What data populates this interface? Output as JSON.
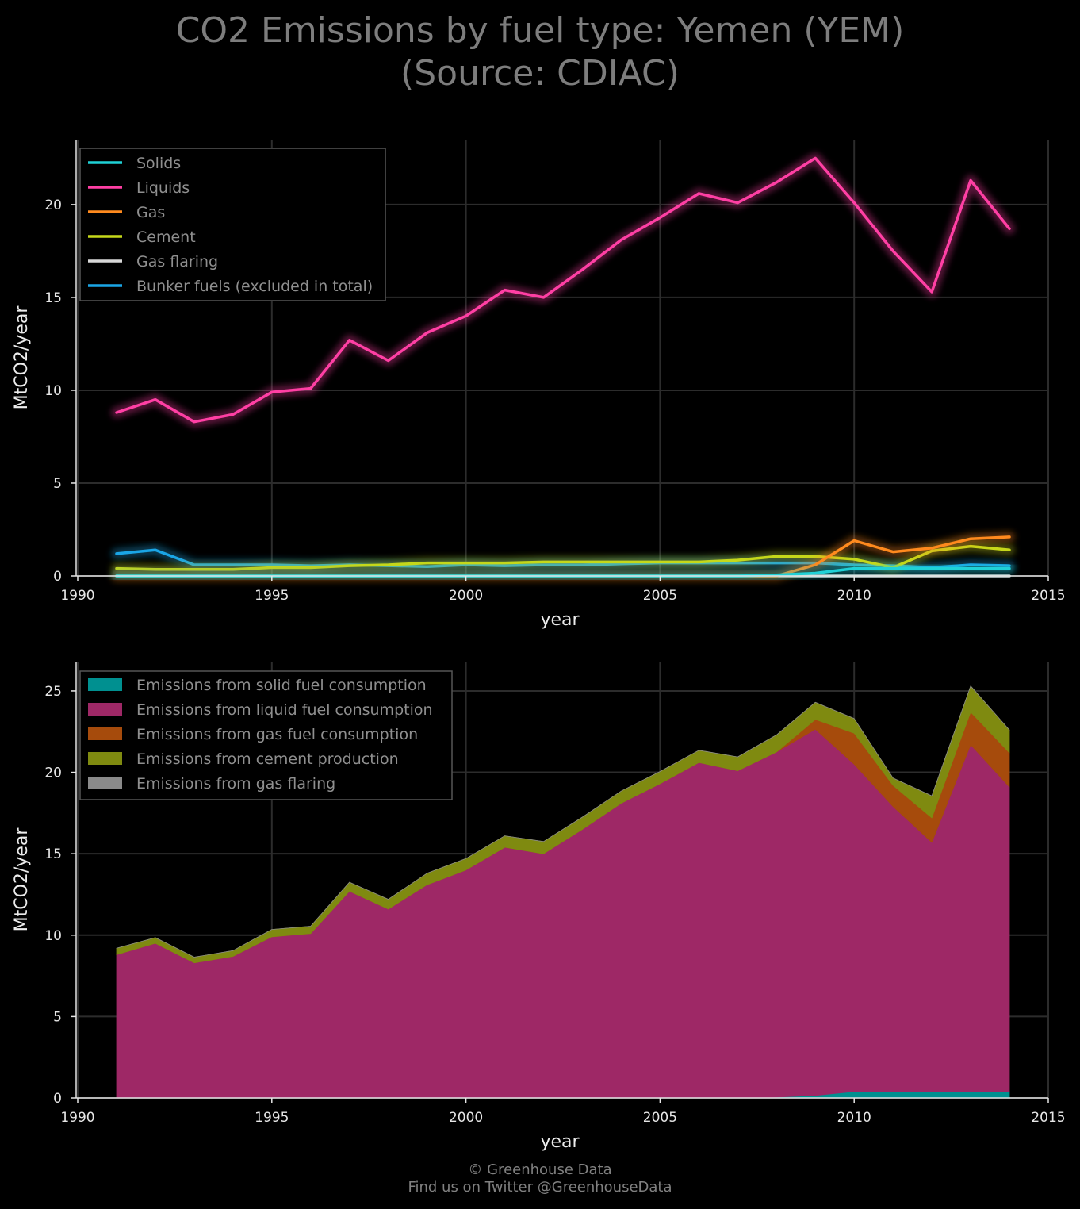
{
  "title": {
    "line1": "CO2 Emissions by fuel type: Yemen (YEM)",
    "line2": "(Source: CDIAC)"
  },
  "footer": {
    "line1": "© Greenhouse Data",
    "line2": "Find us on Twitter @GreenhouseData"
  },
  "chart_data": [
    {
      "type": "line",
      "xlabel": "year",
      "ylabel": "MtCO2/year",
      "xlim": [
        1990,
        2015
      ],
      "ylim": [
        0,
        23.5
      ],
      "xticks": [
        1990,
        1995,
        2000,
        2005,
        2010,
        2015
      ],
      "yticks": [
        0,
        5,
        10,
        15,
        20
      ],
      "grid": true,
      "legend_position": "top-left",
      "x": [
        1991,
        1992,
        1993,
        1994,
        1995,
        1996,
        1997,
        1998,
        1999,
        2000,
        2001,
        2002,
        2003,
        2004,
        2005,
        2006,
        2007,
        2008,
        2009,
        2010,
        2011,
        2012,
        2013,
        2014
      ],
      "series": [
        {
          "name": "Solids",
          "color": "#1fd1d6",
          "values": [
            0,
            0,
            0,
            0,
            0,
            0,
            0,
            0,
            0,
            0,
            0,
            0,
            0,
            0,
            0,
            0,
            0,
            0.05,
            0.15,
            0.4,
            0.4,
            0.4,
            0.4,
            0.4
          ]
        },
        {
          "name": "Liquids",
          "color": "#ff3fa4",
          "values": [
            8.8,
            9.5,
            8.3,
            8.7,
            9.9,
            10.1,
            12.7,
            11.6,
            13.1,
            14.0,
            15.4,
            15.0,
            16.5,
            18.1,
            19.3,
            20.6,
            20.1,
            21.2,
            22.5,
            20.1,
            17.5,
            15.3,
            21.3,
            18.7
          ]
        },
        {
          "name": "Gas",
          "color": "#ff8a1e",
          "values": [
            0,
            0,
            0,
            0,
            0,
            0,
            0,
            0,
            0,
            0,
            0,
            0,
            0,
            0,
            0,
            0,
            0,
            0,
            0.6,
            1.9,
            1.3,
            1.5,
            2.0,
            2.1
          ]
        },
        {
          "name": "Cement",
          "color": "#c5d81a",
          "values": [
            0.4,
            0.35,
            0.35,
            0.35,
            0.45,
            0.45,
            0.55,
            0.6,
            0.7,
            0.7,
            0.7,
            0.75,
            0.75,
            0.75,
            0.75,
            0.75,
            0.85,
            1.05,
            1.05,
            0.9,
            0.45,
            1.35,
            1.6,
            1.4
          ]
        },
        {
          "name": "Gas flaring",
          "color": "#d8d8d8",
          "values": [
            0,
            0,
            0,
            0,
            0,
            0,
            0,
            0,
            0,
            0,
            0,
            0,
            0,
            0,
            0,
            0,
            0,
            0,
            0,
            0,
            0,
            0,
            0,
            0
          ]
        },
        {
          "name": "Bunker fuels (excluded in total)",
          "color": "#1aa5e6",
          "values": [
            1.2,
            1.4,
            0.6,
            0.6,
            0.6,
            0.55,
            0.6,
            0.55,
            0.5,
            0.6,
            0.55,
            0.6,
            0.6,
            0.65,
            0.7,
            0.7,
            0.7,
            0.7,
            0.7,
            0.6,
            0.55,
            0.45,
            0.6,
            0.55
          ]
        }
      ]
    },
    {
      "type": "area",
      "stacked": true,
      "xlabel": "year",
      "ylabel": "MtCO2/year",
      "xlim": [
        1990,
        2015
      ],
      "ylim": [
        0,
        26.8
      ],
      "xticks": [
        1990,
        1995,
        2000,
        2005,
        2010,
        2015
      ],
      "yticks": [
        0,
        5,
        10,
        15,
        20,
        25
      ],
      "grid": true,
      "legend_position": "top-left",
      "x": [
        1991,
        1992,
        1993,
        1994,
        1995,
        1996,
        1997,
        1998,
        1999,
        2000,
        2001,
        2002,
        2003,
        2004,
        2005,
        2006,
        2007,
        2008,
        2009,
        2010,
        2011,
        2012,
        2013,
        2014
      ],
      "series": [
        {
          "name": "Emissions from solid fuel consumption",
          "color": "#009090",
          "values": [
            0,
            0,
            0,
            0,
            0,
            0,
            0,
            0,
            0,
            0,
            0,
            0,
            0,
            0,
            0,
            0,
            0,
            0.05,
            0.15,
            0.4,
            0.4,
            0.4,
            0.4,
            0.4
          ]
        },
        {
          "name": "Emissions from liquid fuel consumption",
          "color": "#9e2866",
          "values": [
            8.8,
            9.5,
            8.3,
            8.7,
            9.9,
            10.1,
            12.7,
            11.6,
            13.1,
            14.0,
            15.4,
            15.0,
            16.5,
            18.1,
            19.3,
            20.6,
            20.1,
            21.2,
            22.5,
            20.1,
            17.5,
            15.3,
            21.3,
            18.7
          ]
        },
        {
          "name": "Emissions from gas fuel consumption",
          "color": "#a64b0c",
          "values": [
            0,
            0,
            0,
            0,
            0,
            0,
            0,
            0,
            0,
            0,
            0,
            0,
            0,
            0,
            0,
            0,
            0,
            0,
            0.6,
            1.9,
            1.3,
            1.5,
            2.0,
            2.1
          ]
        },
        {
          "name": "Emissions from cement production",
          "color": "#7f8a10",
          "values": [
            0.4,
            0.35,
            0.35,
            0.35,
            0.45,
            0.45,
            0.55,
            0.6,
            0.7,
            0.7,
            0.7,
            0.75,
            0.75,
            0.75,
            0.75,
            0.75,
            0.85,
            1.05,
            1.05,
            0.9,
            0.45,
            1.35,
            1.6,
            1.4
          ]
        },
        {
          "name": "Emissions from gas flaring",
          "color": "#8a8a8a",
          "values": [
            0,
            0,
            0,
            0,
            0,
            0,
            0,
            0,
            0,
            0,
            0,
            0,
            0,
            0,
            0,
            0,
            0,
            0,
            0,
            0,
            0,
            0,
            0,
            0
          ]
        }
      ]
    }
  ]
}
